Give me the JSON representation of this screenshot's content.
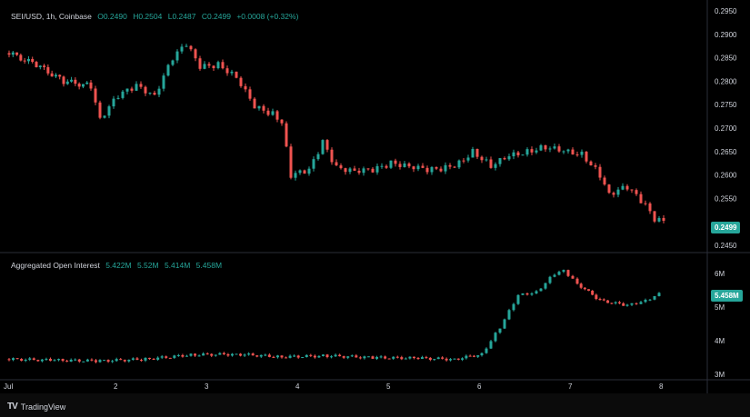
{
  "header": {
    "symbol": "SEI/USD, 1h, Coinbase",
    "open": "O0.2490",
    "high": "H0.2504",
    "low": "L0.2487",
    "close": "C0.2499",
    "change": "+0.0008 (+0.32%)"
  },
  "indicator": {
    "name": "Aggregated Open Interest",
    "v1": "5.422M",
    "v2": "5.52M",
    "v3": "5.414M",
    "v4": "5.458M"
  },
  "price_axis": [
    "0.2950",
    "0.2900",
    "0.2850",
    "0.2800",
    "0.2750",
    "0.2700",
    "0.2650",
    "0.2600",
    "0.2550",
    "0.2450"
  ],
  "price_tag": "0.2499",
  "oi_axis": [
    "6M",
    "5M",
    "4M",
    "3M"
  ],
  "oi_tag": "5.458M",
  "time_axis": [
    "Jul",
    "2",
    "3",
    "4",
    "5",
    "6",
    "7",
    "8"
  ],
  "brand": "TradingView",
  "colors": {
    "up": "#26a69a",
    "down": "#ef5350",
    "background": "#000000",
    "text": "#d1d4dc"
  },
  "chart_data": [
    {
      "type": "candlestick",
      "series": [
        {
          "name": "SEI/USD",
          "points": [
            [
              1.0,
              0.286
            ],
            [
              1.3,
              0.2835
            ],
            [
              1.6,
              0.28
            ],
            [
              1.9,
              0.279
            ],
            [
              2.0,
              0.272
            ],
            [
              2.2,
              0.277
            ],
            [
              2.4,
              0.279
            ],
            [
              2.6,
              0.277
            ],
            [
              2.8,
              0.285
            ],
            [
              2.95,
              0.288
            ],
            [
              3.1,
              0.283
            ],
            [
              3.3,
              0.2835
            ],
            [
              3.5,
              0.281
            ],
            [
              3.7,
              0.2745
            ],
            [
              3.9,
              0.273
            ],
            [
              4.0,
              0.271
            ],
            [
              4.1,
              0.26
            ],
            [
              4.3,
              0.261
            ],
            [
              4.45,
              0.267
            ],
            [
              4.6,
              0.2615
            ],
            [
              4.8,
              0.261
            ],
            [
              5.0,
              0.261
            ],
            [
              5.2,
              0.2625
            ],
            [
              5.4,
              0.262
            ],
            [
              5.6,
              0.261
            ],
            [
              5.8,
              0.2615
            ],
            [
              5.95,
              0.2625
            ],
            [
              6.1,
              0.265
            ],
            [
              6.3,
              0.262
            ],
            [
              6.5,
              0.264
            ],
            [
              6.7,
              0.265
            ],
            [
              6.9,
              0.266
            ],
            [
              7.1,
              0.265
            ],
            [
              7.3,
              0.2645
            ],
            [
              7.5,
              0.26
            ],
            [
              7.6,
              0.256
            ],
            [
              7.8,
              0.2575
            ],
            [
              8.0,
              0.2535
            ],
            [
              8.1,
              0.2505
            ],
            [
              8.25,
              0.2499
            ]
          ]
        }
      ],
      "ylim": [
        0.245,
        0.295
      ]
    },
    {
      "type": "bar",
      "series": [
        {
          "name": "Aggregated Open Interest",
          "points": [
            [
              1.0,
              3.45
            ],
            [
              1.5,
              3.42
            ],
            [
              2.0,
              3.4
            ],
            [
              2.5,
              3.45
            ],
            [
              3.0,
              3.58
            ],
            [
              3.5,
              3.6
            ],
            [
              4.0,
              3.52
            ],
            [
              4.5,
              3.55
            ],
            [
              5.0,
              3.5
            ],
            [
              5.5,
              3.48
            ],
            [
              5.9,
              3.45
            ],
            [
              6.2,
              3.6
            ],
            [
              6.4,
              4.4
            ],
            [
              6.6,
              5.35
            ],
            [
              6.8,
              5.45
            ],
            [
              7.0,
              6.0
            ],
            [
              7.1,
              6.1
            ],
            [
              7.25,
              5.7
            ],
            [
              7.5,
              5.2
            ],
            [
              7.8,
              5.05
            ],
            [
              8.0,
              5.2
            ],
            [
              8.2,
              5.45
            ]
          ]
        }
      ],
      "ylim": [
        3,
        6.3
      ]
    }
  ]
}
